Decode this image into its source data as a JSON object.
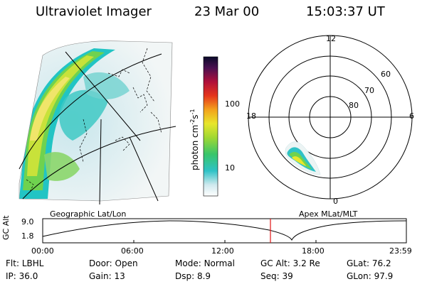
{
  "header": {
    "instrument": "Ultraviolet Imager",
    "date": "23 Mar 00",
    "time": "15:03:37 UT"
  },
  "colorbar": {
    "unit_label": "photon cm",
    "unit_sup1": "-2",
    "unit_mid": "s",
    "unit_sup2": "-1",
    "tick_100": "100",
    "tick_10": "10"
  },
  "polar_plot": {
    "mlt_top": "12",
    "mlt_left": "18",
    "mlt_right": "6",
    "mlt_bottom": "0",
    "lat_60": "60",
    "lat_70": "70",
    "lat_80": "80"
  },
  "panel_labels": {
    "geo": "Geographic Lat/Lon",
    "apex": "Apex MLat/MLT"
  },
  "altitude_plot": {
    "ylabel": "GC Alt",
    "ytick_top": "9.0",
    "ytick_bottom": "1.8",
    "xticks": [
      "00:00",
      "06:00",
      "12:00",
      "18:00",
      "23:59"
    ]
  },
  "info": {
    "filter_label": "Flt:",
    "filter_value": "LBHL",
    "ip_label": "IP:",
    "ip_value": "36.0",
    "door_label": "Door:",
    "door_value": "Open",
    "gain_label": "Gain:",
    "gain_value": "13",
    "mode_label": "Mode:",
    "mode_value": "Normal",
    "dsp_label": "Dsp:",
    "dsp_value": "8.9",
    "gcalt_label": "GC Alt:",
    "gcalt_value": "3.2 Re",
    "seq_label": "Seq:",
    "seq_value": "39",
    "glat_label": "GLat:",
    "glat_value": "76.2",
    "glon_label": "GLon:",
    "glon_value": "97.9"
  }
}
